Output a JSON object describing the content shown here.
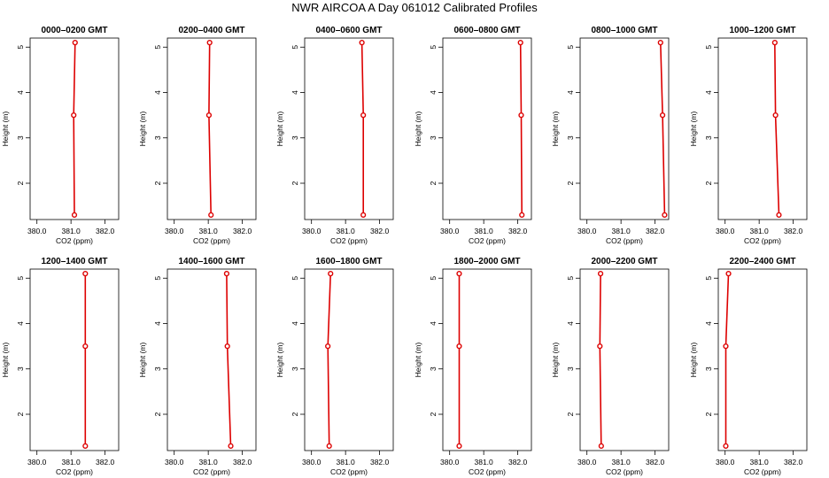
{
  "figure": {
    "title": "NWR AIRCOA A  Day 061012  Calibrated Profiles"
  },
  "colors": {
    "series": "#dd0000",
    "axis": "#000000"
  },
  "chart_data": [
    {
      "type": "line",
      "title": "0000–0200 GMT",
      "xlabel": "CO2 (ppm)",
      "ylabel": "Height (m)",
      "xlim": [
        379.8,
        382.4
      ],
      "ylim": [
        1.2,
        5.2
      ],
      "x_ticks": [
        "380.0",
        "381.0",
        "382.0"
      ],
      "y_ticks": [
        "2",
        "3",
        "4",
        "5"
      ],
      "x": [
        381.1,
        381.08,
        381.12
      ],
      "y": [
        1.3,
        3.5,
        5.1
      ]
    },
    {
      "type": "line",
      "title": "0200–0400 GMT",
      "xlabel": "CO2 (ppm)",
      "ylabel": "Height (m)",
      "xlim": [
        379.8,
        382.4
      ],
      "ylim": [
        1.2,
        5.2
      ],
      "x_ticks": [
        "380.0",
        "381.0",
        "382.0"
      ],
      "y_ticks": [
        "2",
        "3",
        "4",
        "5"
      ],
      "x": [
        381.08,
        381.02,
        381.04
      ],
      "y": [
        1.3,
        3.5,
        5.1
      ]
    },
    {
      "type": "line",
      "title": "0400–0600 GMT",
      "xlabel": "CO2 (ppm)",
      "ylabel": "Height (m)",
      "xlim": [
        379.8,
        382.4
      ],
      "ylim": [
        1.2,
        5.2
      ],
      "x_ticks": [
        "380.0",
        "381.0",
        "382.0"
      ],
      "y_ticks": [
        "2",
        "3",
        "4",
        "5"
      ],
      "x": [
        381.52,
        381.52,
        381.48
      ],
      "y": [
        1.3,
        3.5,
        5.1
      ]
    },
    {
      "type": "line",
      "title": "0600–0800 GMT",
      "xlabel": "CO2 (ppm)",
      "ylabel": "Height (m)",
      "xlim": [
        379.8,
        382.4
      ],
      "ylim": [
        1.2,
        5.2
      ],
      "x_ticks": [
        "380.0",
        "381.0",
        "382.0"
      ],
      "y_ticks": [
        "2",
        "3",
        "4",
        "5"
      ],
      "x": [
        382.12,
        382.1,
        382.08
      ],
      "y": [
        1.3,
        3.5,
        5.1
      ]
    },
    {
      "type": "line",
      "title": "0800–1000 GMT",
      "xlabel": "CO2 (ppm)",
      "ylabel": "Height (m)",
      "xlim": [
        379.8,
        382.4
      ],
      "ylim": [
        1.2,
        5.2
      ],
      "x_ticks": [
        "380.0",
        "381.0",
        "382.0"
      ],
      "y_ticks": [
        "2",
        "3",
        "4",
        "5"
      ],
      "x": [
        382.28,
        382.22,
        382.16
      ],
      "y": [
        1.3,
        3.5,
        5.1
      ]
    },
    {
      "type": "line",
      "title": "1000–1200 GMT",
      "xlabel": "CO2 (ppm)",
      "ylabel": "Height (m)",
      "xlim": [
        379.8,
        382.4
      ],
      "ylim": [
        1.2,
        5.2
      ],
      "x_ticks": [
        "380.0",
        "381.0",
        "382.0"
      ],
      "y_ticks": [
        "2",
        "3",
        "4",
        "5"
      ],
      "x": [
        381.58,
        381.48,
        381.46
      ],
      "y": [
        1.3,
        3.5,
        5.1
      ]
    },
    {
      "type": "line",
      "title": "1200–1400 GMT",
      "xlabel": "CO2 (ppm)",
      "ylabel": "Height (m)",
      "xlim": [
        379.8,
        382.4
      ],
      "ylim": [
        1.2,
        5.2
      ],
      "x_ticks": [
        "380.0",
        "381.0",
        "382.0"
      ],
      "y_ticks": [
        "2",
        "3",
        "4",
        "5"
      ],
      "x": [
        381.42,
        381.42,
        381.42
      ],
      "y": [
        1.3,
        3.5,
        5.1
      ]
    },
    {
      "type": "line",
      "title": "1400–1600 GMT",
      "xlabel": "CO2 (ppm)",
      "ylabel": "Height (m)",
      "xlim": [
        379.8,
        382.4
      ],
      "ylim": [
        1.2,
        5.2
      ],
      "x_ticks": [
        "380.0",
        "381.0",
        "382.0"
      ],
      "y_ticks": [
        "2",
        "3",
        "4",
        "5"
      ],
      "x": [
        381.66,
        381.56,
        381.54
      ],
      "y": [
        1.3,
        3.5,
        5.1
      ]
    },
    {
      "type": "line",
      "title": "1600–1800 GMT",
      "xlabel": "CO2 (ppm)",
      "ylabel": "Height (m)",
      "xlim": [
        379.8,
        382.4
      ],
      "ylim": [
        1.2,
        5.2
      ],
      "x_ticks": [
        "380.0",
        "381.0",
        "382.0"
      ],
      "y_ticks": [
        "2",
        "3",
        "4",
        "5"
      ],
      "x": [
        380.52,
        380.48,
        380.56
      ],
      "y": [
        1.3,
        3.5,
        5.1
      ]
    },
    {
      "type": "line",
      "title": "1800–2000 GMT",
      "xlabel": "CO2 (ppm)",
      "ylabel": "Height (m)",
      "xlim": [
        379.8,
        382.4
      ],
      "ylim": [
        1.2,
        5.2
      ],
      "x_ticks": [
        "380.0",
        "381.0",
        "382.0"
      ],
      "y_ticks": [
        "2",
        "3",
        "4",
        "5"
      ],
      "x": [
        380.28,
        380.28,
        380.28
      ],
      "y": [
        1.3,
        3.5,
        5.1
      ]
    },
    {
      "type": "line",
      "title": "2000–2200 GMT",
      "xlabel": "CO2 (ppm)",
      "ylabel": "Height (m)",
      "xlim": [
        379.8,
        382.4
      ],
      "ylim": [
        1.2,
        5.2
      ],
      "x_ticks": [
        "380.0",
        "381.0",
        "382.0"
      ],
      "y_ticks": [
        "2",
        "3",
        "4",
        "5"
      ],
      "x": [
        380.42,
        380.38,
        380.4
      ],
      "y": [
        1.3,
        3.5,
        5.1
      ]
    },
    {
      "type": "line",
      "title": "2200–2400 GMT",
      "xlabel": "CO2 (ppm)",
      "ylabel": "Height (m)",
      "xlim": [
        379.8,
        382.4
      ],
      "ylim": [
        1.2,
        5.2
      ],
      "x_ticks": [
        "380.0",
        "381.0",
        "382.0"
      ],
      "y_ticks": [
        "2",
        "3",
        "4",
        "5"
      ],
      "x": [
        380.02,
        380.02,
        380.1
      ],
      "y": [
        1.3,
        3.5,
        5.1
      ]
    }
  ]
}
